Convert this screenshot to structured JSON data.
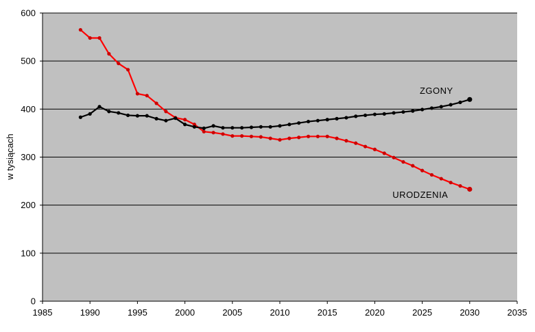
{
  "chart_data": {
    "type": "line",
    "title": "",
    "xlabel": "",
    "ylabel": "w tysiącach",
    "xlim": [
      1985,
      2035
    ],
    "ylim": [
      0,
      600
    ],
    "x_ticks": [
      1985,
      1990,
      1995,
      2000,
      2005,
      2010,
      2015,
      2020,
      2025,
      2030,
      2035
    ],
    "y_ticks": [
      0,
      100,
      200,
      300,
      400,
      500,
      600
    ],
    "grid": "horizontal",
    "plot_background": "#c0c0c0",
    "series": [
      {
        "name": "URODZENIA",
        "color": "#ff0000",
        "marker_color": "#cc0000",
        "points": [
          [
            1989,
            565
          ],
          [
            1990,
            548
          ],
          [
            1991,
            548
          ],
          [
            1992,
            515
          ],
          [
            1993,
            495
          ],
          [
            1994,
            482
          ],
          [
            1995,
            432
          ],
          [
            1996,
            428
          ],
          [
            1997,
            412
          ],
          [
            1998,
            395
          ],
          [
            1999,
            382
          ],
          [
            2000,
            378
          ],
          [
            2001,
            368
          ],
          [
            2002,
            353
          ],
          [
            2003,
            351
          ],
          [
            2004,
            348
          ],
          [
            2005,
            344
          ],
          [
            2006,
            344
          ],
          [
            2007,
            343
          ],
          [
            2008,
            342
          ],
          [
            2009,
            339
          ],
          [
            2010,
            336
          ],
          [
            2011,
            339
          ],
          [
            2012,
            341
          ],
          [
            2013,
            343
          ],
          [
            2014,
            343
          ],
          [
            2015,
            343
          ],
          [
            2016,
            339
          ],
          [
            2017,
            334
          ],
          [
            2018,
            329
          ],
          [
            2019,
            322
          ],
          [
            2020,
            316
          ],
          [
            2021,
            308
          ],
          [
            2022,
            299
          ],
          [
            2023,
            290
          ],
          [
            2024,
            282
          ],
          [
            2025,
            272
          ],
          [
            2026,
            263
          ],
          [
            2027,
            255
          ],
          [
            2028,
            247
          ],
          [
            2029,
            240
          ],
          [
            2030,
            233
          ]
        ]
      },
      {
        "name": "ZGONY",
        "color": "#000000",
        "marker_color": "#000000",
        "points": [
          [
            1989,
            383
          ],
          [
            1990,
            390
          ],
          [
            1991,
            405
          ],
          [
            1992,
            395
          ],
          [
            1993,
            392
          ],
          [
            1994,
            387
          ],
          [
            1995,
            386
          ],
          [
            1996,
            386
          ],
          [
            1997,
            380
          ],
          [
            1998,
            376
          ],
          [
            1999,
            381
          ],
          [
            2000,
            368
          ],
          [
            2001,
            363
          ],
          [
            2002,
            360
          ],
          [
            2003,
            365
          ],
          [
            2004,
            361
          ],
          [
            2005,
            361
          ],
          [
            2006,
            361
          ],
          [
            2007,
            362
          ],
          [
            2008,
            363
          ],
          [
            2009,
            363
          ],
          [
            2010,
            365
          ],
          [
            2011,
            368
          ],
          [
            2012,
            371
          ],
          [
            2013,
            374
          ],
          [
            2014,
            376
          ],
          [
            2015,
            378
          ],
          [
            2016,
            380
          ],
          [
            2017,
            382
          ],
          [
            2018,
            385
          ],
          [
            2019,
            387
          ],
          [
            2020,
            389
          ],
          [
            2021,
            390
          ],
          [
            2022,
            392
          ],
          [
            2023,
            394
          ],
          [
            2024,
            396
          ],
          [
            2025,
            399
          ],
          [
            2026,
            402
          ],
          [
            2027,
            405
          ],
          [
            2028,
            409
          ],
          [
            2029,
            414
          ],
          [
            2030,
            420
          ]
        ]
      }
    ],
    "annotations": [
      {
        "text": "ZGONY",
        "x": 2026.5,
        "y": 432
      },
      {
        "text": "URODZENIA",
        "x": 2024.8,
        "y": 215
      }
    ]
  }
}
